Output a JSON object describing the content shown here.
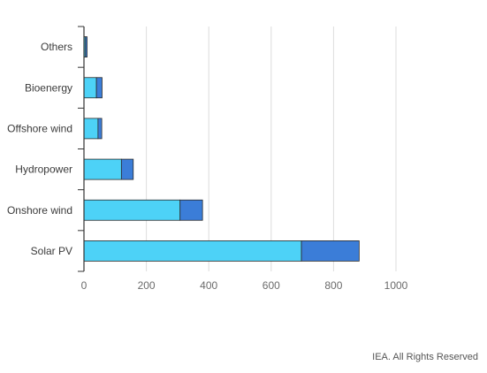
{
  "chart_data": {
    "type": "bar",
    "orientation": "horizontal",
    "stacked": true,
    "categories": [
      "Others",
      "Bioenergy",
      "Offshore wind",
      "Hydropower",
      "Onshore wind",
      "Solar PV"
    ],
    "series": [
      {
        "values": [
          5,
          40,
          45,
          120,
          308,
          697
        ],
        "color": "#4dd2f7"
      },
      {
        "values": [
          5,
          18,
          12,
          38,
          72,
          185
        ],
        "color": "#3b7dd8"
      }
    ],
    "xlim": [
      0,
      1000
    ],
    "xticks": [
      0,
      200,
      400,
      600,
      800,
      1000
    ],
    "grid": "vertical",
    "legend": "none"
  },
  "credit": "IEA. All Rights Reserved"
}
